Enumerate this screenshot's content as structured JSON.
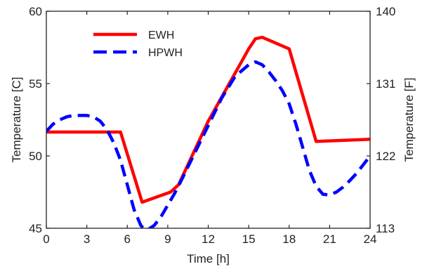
{
  "chart_data": {
    "type": "line",
    "title": "",
    "xlabel": "Time [h]",
    "ylabel": "Temperature [C]",
    "ylabel_right": "Temperature [F]",
    "xlim": [
      0,
      24
    ],
    "ylim": [
      45,
      60
    ],
    "ylim_right": [
      113,
      140
    ],
    "x_ticks": [
      0,
      3,
      6,
      9,
      12,
      15,
      18,
      21,
      24
    ],
    "y_ticks": [
      45,
      50,
      55,
      60
    ],
    "y_ticks_right": [
      113,
      122,
      131,
      140
    ],
    "grid": false,
    "legend_position": "top-left",
    "series": [
      {
        "name": "EWH",
        "color": "#ff0000",
        "line_style": "solid",
        "x": [
          0,
          5.5,
          7.1,
          9.2,
          9.8,
          12.0,
          15.0,
          15.5,
          16.0,
          16.5,
          18.0,
          20.0,
          24.0
        ],
        "y": [
          51.65,
          51.65,
          46.8,
          47.5,
          48.0,
          52.4,
          57.4,
          58.1,
          58.2,
          58.0,
          57.4,
          51.0,
          51.15
        ]
      },
      {
        "name": "HPWH",
        "color": "#0000ff",
        "line_style": "dashed",
        "x": [
          0,
          0.5,
          1.0,
          1.5,
          2.0,
          2.5,
          3.0,
          3.5,
          4.0,
          4.5,
          5.0,
          5.5,
          6.0,
          6.5,
          7.0,
          7.3,
          7.6,
          8.0,
          8.5,
          9.0,
          9.5,
          10.0,
          11.0,
          12.0,
          13.0,
          14.0,
          15.0,
          15.5,
          16.0,
          16.5,
          17.0,
          17.5,
          18.0,
          18.5,
          19.0,
          19.5,
          20.0,
          20.5,
          21.0,
          21.5,
          22.0,
          22.5,
          23.0,
          23.5,
          24.0
        ],
        "y": [
          51.7,
          52.2,
          52.5,
          52.7,
          52.8,
          52.8,
          52.8,
          52.7,
          52.4,
          51.8,
          50.9,
          49.7,
          48.0,
          46.3,
          45.2,
          44.9,
          44.95,
          45.2,
          45.8,
          46.6,
          47.4,
          48.3,
          50.2,
          52.1,
          54.0,
          55.5,
          56.3,
          56.5,
          56.3,
          55.8,
          55.2,
          54.5,
          53.6,
          52.2,
          50.6,
          49.0,
          47.9,
          47.35,
          47.3,
          47.5,
          47.85,
          48.3,
          48.8,
          49.4,
          50.0
        ]
      }
    ]
  }
}
